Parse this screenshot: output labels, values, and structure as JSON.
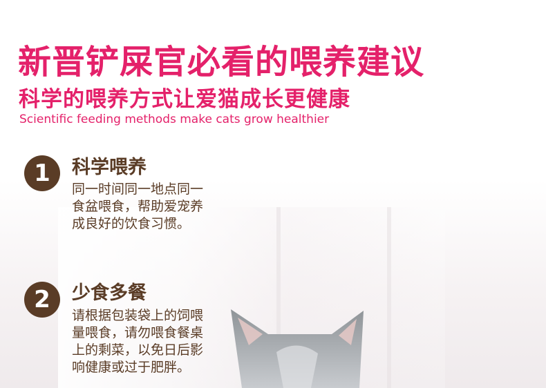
{
  "header": {
    "title": "新晋铲屎官必看的喂养建议",
    "subtitle": "科学的喂养方式让爱猫成长更健康",
    "subtitle_en": "Scientific feeding methods make cats grow healthier"
  },
  "tips": [
    {
      "number": "1",
      "title": "科学喂养",
      "lines": [
        "同一时间同一地点同一",
        "食盆喂食，帮助爱宠养",
        "成良好的饮食习惯。"
      ]
    },
    {
      "number": "2",
      "title": "少食多餐",
      "lines": [
        "请根据包装袋上的饲喂",
        "量喂食，请勿喂食餐桌",
        "上的剩菜，以免日后影",
        "响健康或过于肥胖。"
      ]
    }
  ],
  "colors": {
    "accent": "#e4216a",
    "brown": "#5a3c26"
  }
}
